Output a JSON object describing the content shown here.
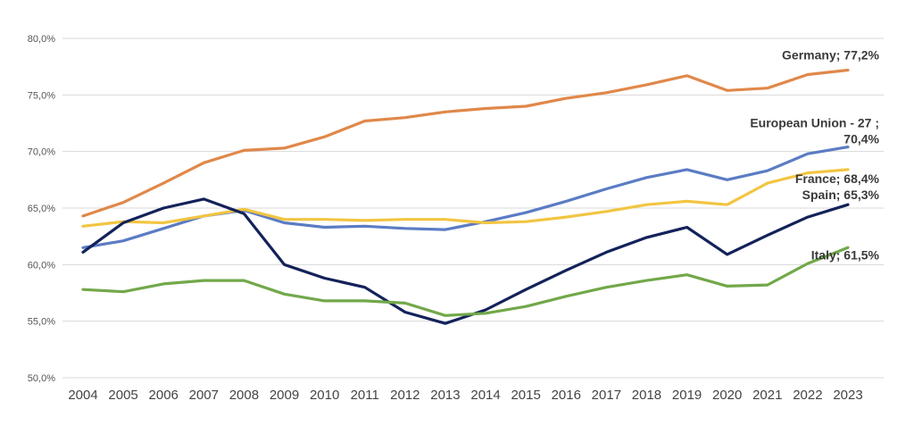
{
  "chart_data": {
    "type": "line",
    "title": "",
    "xlabel": "",
    "ylabel": "",
    "ylim": [
      50,
      80
    ],
    "y_ticks": [
      "50,0%",
      "55,0%",
      "60,0%",
      "65,0%",
      "70,0%",
      "75,0%",
      "80,0%"
    ],
    "y_tick_values": [
      50,
      55,
      60,
      65,
      70,
      75,
      80
    ],
    "grid": "horizontal",
    "categories": [
      "2004",
      "2005",
      "2006",
      "2007",
      "2008",
      "2009",
      "2010",
      "2011",
      "2012",
      "2013",
      "2014",
      "2015",
      "2016",
      "2017",
      "2018",
      "2019",
      "2020",
      "2021",
      "2022",
      "2023"
    ],
    "series": [
      {
        "name": "Germany",
        "color": "#e0884a",
        "label_lines": [
          "Germany; 77,2%"
        ],
        "values": [
          64.3,
          65.5,
          67.2,
          69.0,
          70.1,
          70.3,
          71.3,
          72.7,
          73.0,
          73.5,
          73.8,
          74.0,
          74.7,
          75.2,
          75.9,
          76.7,
          75.4,
          75.6,
          76.8,
          77.2
        ]
      },
      {
        "name": "European Union - 27",
        "color": "#5b7cc4",
        "label_lines": [
          "European Union - 27 ;",
          "70,4%"
        ],
        "values": [
          61.5,
          62.1,
          63.2,
          64.3,
          64.8,
          63.7,
          63.3,
          63.4,
          63.2,
          63.1,
          63.8,
          64.6,
          65.6,
          66.7,
          67.7,
          68.4,
          67.5,
          68.3,
          69.8,
          70.4
        ]
      },
      {
        "name": "France",
        "color": "#f2c542",
        "label_lines": [
          "France; 68,4%"
        ],
        "values": [
          63.4,
          63.8,
          63.7,
          64.3,
          64.9,
          64.0,
          64.0,
          63.9,
          64.0,
          64.0,
          63.7,
          63.8,
          64.2,
          64.7,
          65.3,
          65.6,
          65.3,
          67.2,
          68.1,
          68.4
        ]
      },
      {
        "name": "Spain",
        "color": "#13225a",
        "label_lines": [
          "Spain; 65,3%"
        ],
        "values": [
          61.1,
          63.7,
          65.0,
          65.8,
          64.5,
          60.0,
          58.8,
          58.0,
          55.8,
          54.8,
          56.0,
          57.8,
          59.5,
          61.1,
          62.4,
          63.3,
          60.9,
          62.6,
          64.2,
          65.3
        ]
      },
      {
        "name": "Italy",
        "color": "#72a84a",
        "label_lines": [
          "Italy; 61,5%"
        ],
        "values": [
          57.8,
          57.6,
          58.3,
          58.6,
          58.6,
          57.4,
          56.8,
          56.8,
          56.6,
          55.5,
          55.7,
          56.3,
          57.2,
          58.0,
          58.6,
          59.1,
          58.1,
          58.2,
          60.1,
          61.5
        ]
      }
    ]
  }
}
